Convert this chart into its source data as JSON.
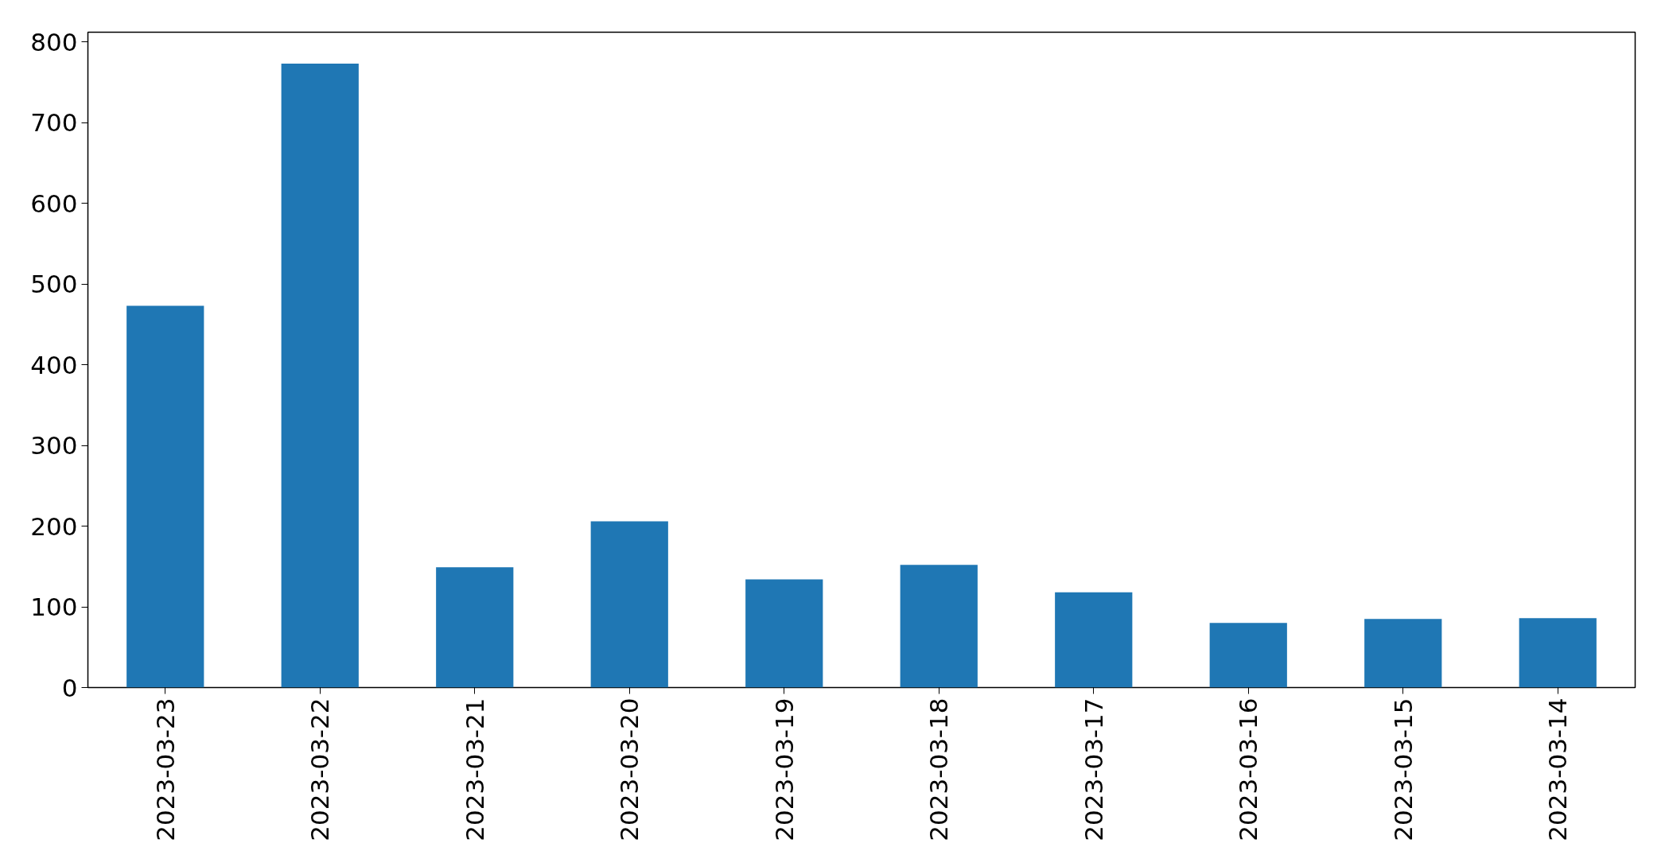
{
  "chart_data": {
    "type": "bar",
    "categories": [
      "2023-03-23",
      "2023-03-22",
      "2023-03-21",
      "2023-03-20",
      "2023-03-19",
      "2023-03-18",
      "2023-03-17",
      "2023-03-16",
      "2023-03-15",
      "2023-03-14"
    ],
    "values": [
      473,
      773,
      149,
      206,
      134,
      152,
      118,
      80,
      85,
      86
    ],
    "color": "#1f77b4",
    "ylim": [
      0,
      812
    ],
    "yticks": [
      0,
      100,
      200,
      300,
      400,
      500,
      600,
      700,
      800
    ],
    "grid": false
  }
}
